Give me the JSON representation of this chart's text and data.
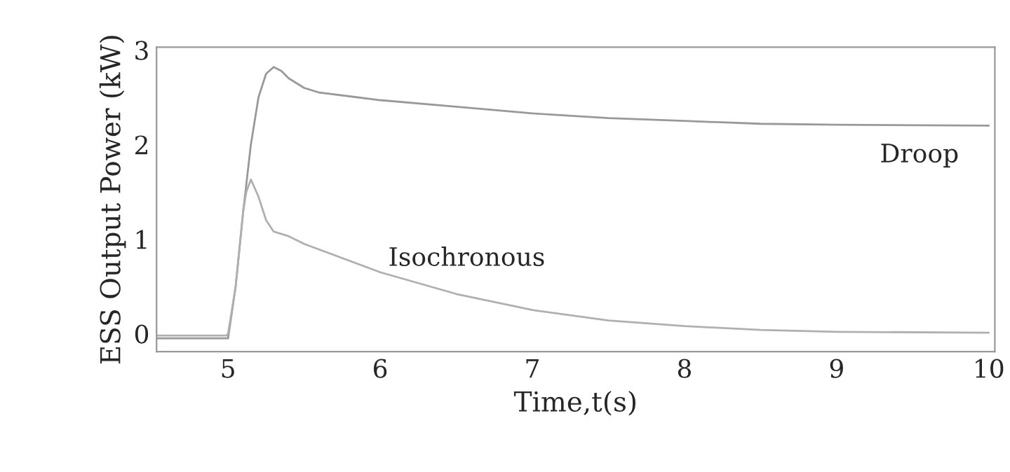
{
  "chart_data": {
    "type": "line",
    "xlabel": "Time,t(s)",
    "ylabel": "ESS Output Power (kW)",
    "xlim": [
      4.53,
      10.04
    ],
    "ylim": [
      -0.19,
      3.03
    ],
    "xticks": [
      5,
      6,
      7,
      8,
      9,
      10
    ],
    "yticks": [
      0,
      1,
      2,
      3
    ],
    "grid": false,
    "legend": false,
    "series": [
      {
        "name": "Droop",
        "color": "#999999",
        "x": [
          4.53,
          4.99,
          5.0,
          5.05,
          5.1,
          5.15,
          5.2,
          5.25,
          5.3,
          5.35,
          5.4,
          5.5,
          5.6,
          6,
          6.5,
          7,
          7.5,
          8,
          8.5,
          9,
          10
        ],
        "values": [
          -0.05,
          -0.05,
          -0.05,
          0.5,
          1.3,
          2.0,
          2.5,
          2.75,
          2.82,
          2.78,
          2.7,
          2.6,
          2.55,
          2.47,
          2.4,
          2.33,
          2.28,
          2.25,
          2.22,
          2.21,
          2.2
        ]
      },
      {
        "name": "Isochronous",
        "color": "#b0b0b0",
        "x": [
          4.53,
          4.99,
          5.0,
          5.05,
          5.1,
          5.12,
          5.15,
          5.2,
          5.25,
          5.3,
          5.4,
          5.5,
          6,
          6.5,
          7,
          7.5,
          8,
          8.5,
          9,
          10
        ],
        "values": [
          -0.02,
          -0.02,
          0.0,
          0.5,
          1.3,
          1.5,
          1.63,
          1.45,
          1.2,
          1.08,
          1.03,
          0.95,
          0.65,
          0.42,
          0.25,
          0.14,
          0.08,
          0.04,
          0.02,
          0.01
        ]
      }
    ]
  }
}
